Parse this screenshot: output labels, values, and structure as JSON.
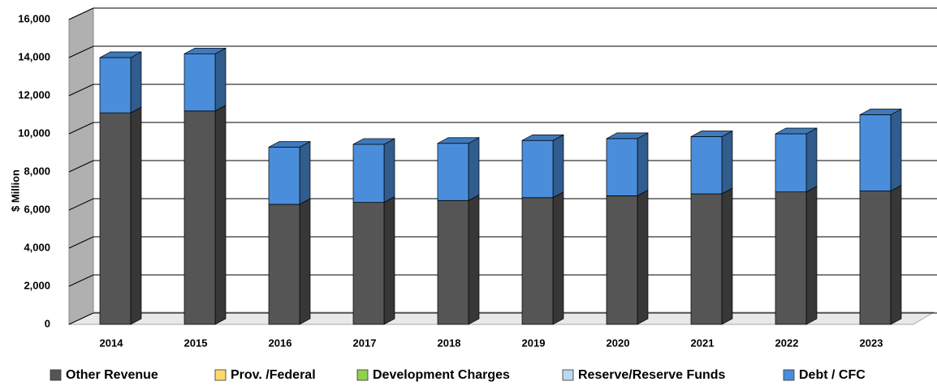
{
  "chart_data": {
    "type": "bar3d_stacked",
    "y_label": "$ Million",
    "categories": [
      "2014",
      "2015",
      "2016",
      "2017",
      "2018",
      "2019",
      "2020",
      "2021",
      "2022",
      "2023"
    ],
    "series": [
      {
        "name": "Other Revenue",
        "color": "#555555",
        "values": [
          11100,
          11200,
          6300,
          6400,
          6500,
          6650,
          6750,
          6850,
          6950,
          7000
        ]
      },
      {
        "name": "Prov. /Federal",
        "color": "#ffd966",
        "values": [
          0,
          0,
          0,
          0,
          0,
          0,
          0,
          0,
          0,
          0
        ]
      },
      {
        "name": "Development Charges",
        "color": "#92d050",
        "values": [
          0,
          0,
          0,
          0,
          0,
          0,
          0,
          0,
          0,
          0
        ]
      },
      {
        "name": "Reserve/Reserve Funds",
        "color": "#bdd7ee",
        "values": [
          0,
          0,
          0,
          0,
          0,
          0,
          0,
          0,
          0,
          0
        ]
      },
      {
        "name": "Debt / CFC",
        "color": "#4a8edb",
        "values": [
          2900,
          3000,
          3000,
          3050,
          3000,
          3000,
          3000,
          3000,
          3050,
          4000
        ]
      }
    ],
    "ylim": [
      0,
      16000
    ],
    "yticks": [
      {
        "value": 0,
        "label": "0"
      },
      {
        "value": 2000,
        "label": "2,000"
      },
      {
        "value": 4000,
        "label": "4,000"
      },
      {
        "value": 6000,
        "label": "6,000"
      },
      {
        "value": 8000,
        "label": "8,000"
      },
      {
        "value": 10000,
        "label": "10,000"
      },
      {
        "value": 12000,
        "label": "12,000"
      },
      {
        "value": 14000,
        "label": "14,000"
      },
      {
        "value": 16000,
        "label": "16,000"
      }
    ],
    "grid": true
  }
}
